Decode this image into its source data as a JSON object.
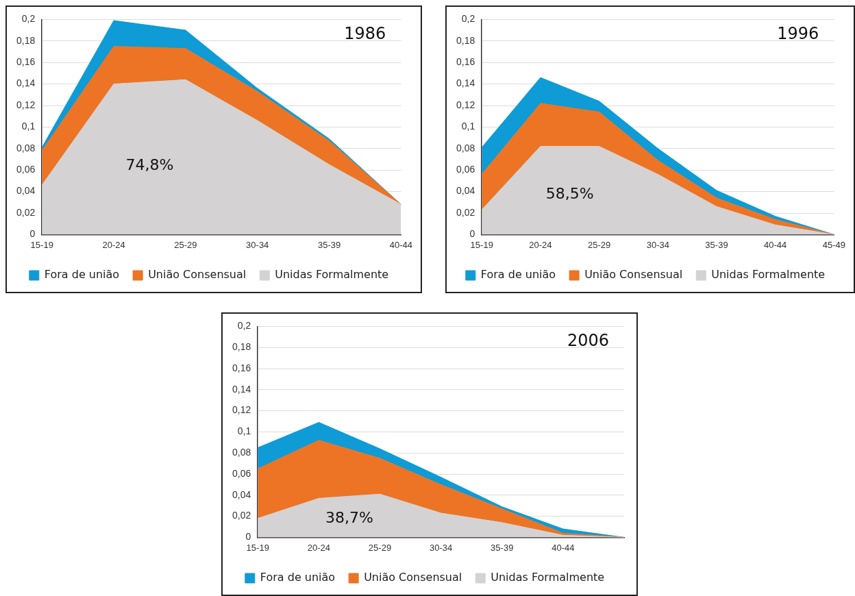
{
  "chart_data": [
    {
      "type": "area",
      "title": "1986",
      "stacked": true,
      "grid": "y",
      "legend": "bottom",
      "annotations": [
        "74,8%"
      ],
      "categories": [
        "15-19",
        "20-24",
        "25-29",
        "30-34",
        "35-39",
        "40-44"
      ],
      "ylim": [
        0,
        0.2
      ],
      "yticks": [
        {
          "value": 0,
          "label": "0"
        },
        {
          "value": 0.02,
          "label": "0,02"
        },
        {
          "value": 0.04,
          "label": "0,04"
        },
        {
          "value": 0.06,
          "label": "0,06"
        },
        {
          "value": 0.08,
          "label": "0,08"
        },
        {
          "value": 0.1,
          "label": "0,1"
        },
        {
          "value": 0.12,
          "label": "0,12"
        },
        {
          "value": 0.14,
          "label": "0,14"
        },
        {
          "value": 0.16,
          "label": "0,16"
        },
        {
          "value": 0.18,
          "label": "0,18"
        },
        {
          "value": 0.2,
          "label": "0,2"
        }
      ],
      "series": [
        {
          "name": "Unidas Formalmente",
          "color": "#d4d2d3",
          "values": [
            0.046,
            0.14,
            0.144,
            0.106,
            0.065,
            0.028
          ]
        },
        {
          "name": "União Consensual",
          "color": "#ec7424",
          "values": [
            0.032,
            0.035,
            0.029,
            0.027,
            0.022,
            0
          ]
        },
        {
          "name": "Fora de união",
          "color": "#0e9bd6",
          "values": [
            0.003,
            0.024,
            0.017,
            0.003,
            0.002,
            0
          ]
        }
      ]
    },
    {
      "type": "area",
      "title": "1996",
      "stacked": true,
      "grid": "y",
      "legend": "bottom",
      "annotations": [
        "58,5%"
      ],
      "categories": [
        "15-19",
        "20-24",
        "25-29",
        "30-34",
        "35-39",
        "40-44",
        "45-49"
      ],
      "ylim": [
        0,
        0.2
      ],
      "yticks": [
        {
          "value": 0,
          "label": "0"
        },
        {
          "value": 0.02,
          "label": "0,02"
        },
        {
          "value": 0.04,
          "label": "0,04"
        },
        {
          "value": 0.06,
          "label": "0,06"
        },
        {
          "value": 0.08,
          "label": "0,08"
        },
        {
          "value": 0.1,
          "label": "0,1"
        },
        {
          "value": 0.12,
          "label": "0,12"
        },
        {
          "value": 0.14,
          "label": "0,14"
        },
        {
          "value": 0.16,
          "label": "0,16"
        },
        {
          "value": 0.18,
          "label": "0,18"
        },
        {
          "value": 0.2,
          "label": "0,2"
        }
      ],
      "series": [
        {
          "name": "Unidas Formalmente",
          "color": "#d4d2d3",
          "values": [
            0.023,
            0.082,
            0.082,
            0.056,
            0.026,
            0.009,
            0
          ]
        },
        {
          "name": "União Consensual",
          "color": "#ec7424",
          "values": [
            0.033,
            0.04,
            0.032,
            0.013,
            0.008,
            0.005,
            0
          ]
        },
        {
          "name": "Fora de união",
          "color": "#0e9bd6",
          "values": [
            0.025,
            0.024,
            0.01,
            0.011,
            0.007,
            0.003,
            0
          ]
        }
      ]
    },
    {
      "type": "area",
      "title": "2006",
      "stacked": true,
      "grid": "y",
      "legend": "bottom",
      "annotations": [
        "38,7%"
      ],
      "categories": [
        "15-19",
        "20-24",
        "25-29",
        "30-34",
        "35-39",
        "40-44",
        null
      ],
      "ylim": [
        0,
        0.2
      ],
      "yticks": [
        {
          "value": 0,
          "label": "0"
        },
        {
          "value": 0.02,
          "label": "0,02"
        },
        {
          "value": 0.04,
          "label": "0,04"
        },
        {
          "value": 0.06,
          "label": "0,06"
        },
        {
          "value": 0.08,
          "label": "0,08"
        },
        {
          "value": 0.1,
          "label": "0,1"
        },
        {
          "value": 0.12,
          "label": "0,12"
        },
        {
          "value": 0.14,
          "label": "0,14"
        },
        {
          "value": 0.16,
          "label": "0,16"
        },
        {
          "value": 0.18,
          "label": "0,18"
        },
        {
          "value": 0.2,
          "label": "0,2"
        }
      ],
      "series": [
        {
          "name": "Unidas Formalmente",
          "color": "#d4d2d3",
          "values": [
            0.018,
            0.037,
            0.041,
            0.023,
            0.014,
            0.002,
            0
          ]
        },
        {
          "name": "União Consensual",
          "color": "#ec7424",
          "values": [
            0.047,
            0.055,
            0.034,
            0.027,
            0.013,
            0.002,
            0
          ]
        },
        {
          "name": "Fora de união",
          "color": "#0e9bd6",
          "values": [
            0.02,
            0.017,
            0.009,
            0.007,
            0.002,
            0.004,
            0
          ]
        }
      ]
    }
  ]
}
